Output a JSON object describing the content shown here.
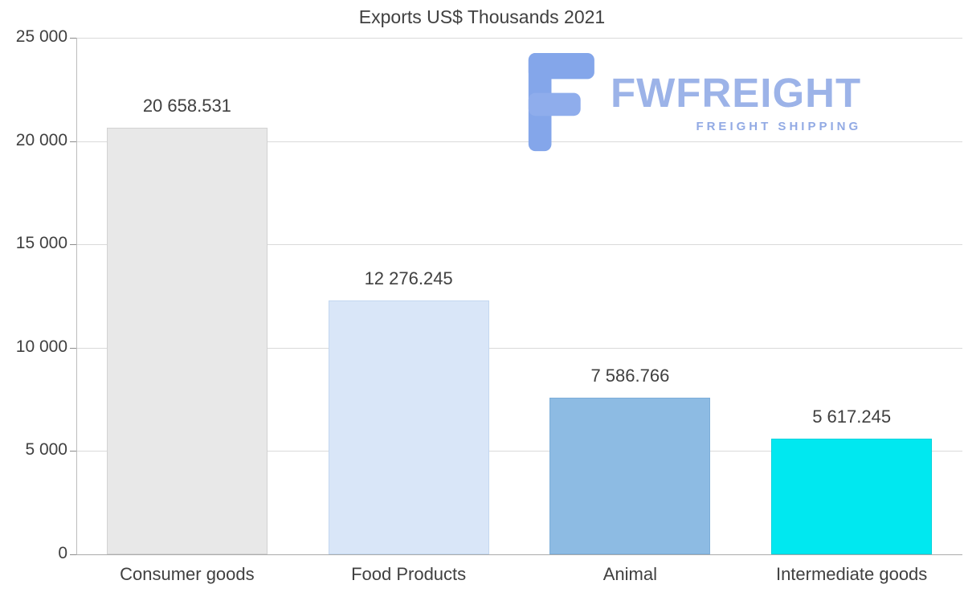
{
  "title": "Exports US$ Thousands 2021",
  "watermark": {
    "brand": "FWFREIGHT",
    "tagline": "FREIGHT SHIPPING",
    "logo_icon": "fwfreight-f-logo",
    "brand_color": "#9cb3e8",
    "tagline_color": "#92aae4",
    "icon_color": "#84a6ea"
  },
  "chart_data": {
    "type": "bar",
    "title": "Exports US$ Thousands 2021",
    "categories": [
      "Consumer goods",
      "Food Products",
      "Animal",
      "Intermediate goods"
    ],
    "values": [
      20658.531,
      12276.245,
      7586.766,
      5617.245
    ],
    "value_labels": [
      "20 658.531",
      "12 276.245",
      "7 586.766",
      "5 617.245"
    ],
    "bar_colors": [
      "#e8e8e8",
      "#d9e6f8",
      "#8dbbe3",
      "#00e8f0"
    ],
    "bar_border_colors": [
      "#d2d2d2",
      "#c3d7f0",
      "#7daed9",
      "#00d2dc"
    ],
    "xlabel": "",
    "ylabel": "",
    "ylim": [
      0,
      25000
    ],
    "ytick_values": [
      0,
      5000,
      10000,
      15000,
      20000,
      25000
    ],
    "ytick_labels": [
      "0",
      "5 000",
      "10 000",
      "15 000",
      "20 000",
      "25 000"
    ],
    "grid": true,
    "legend": "none"
  }
}
